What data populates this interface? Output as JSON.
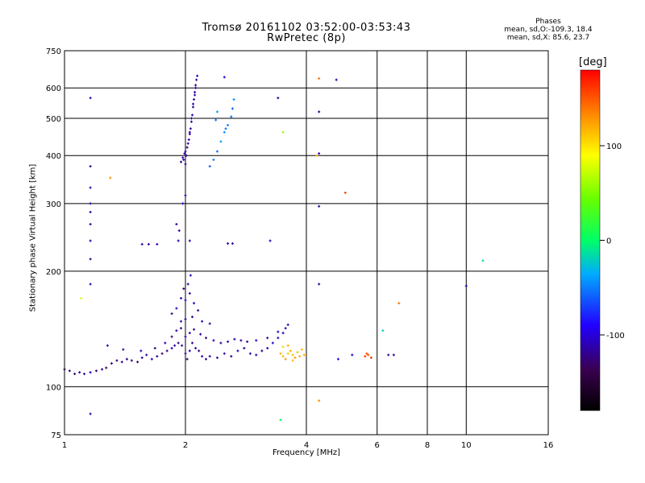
{
  "header": {
    "title": "Tromsø 20161102 03:52:00-03:53:43",
    "subtitle": "RwPretec (8p)",
    "stats_heading": "Phases",
    "stats_o": "mean, sd,O:-109.3, 18.4",
    "stats_x": "mean, sd,X:  85.6, 23.7"
  },
  "colorbar": {
    "unit_label": "[deg]",
    "range": [
      -180,
      180
    ],
    "ticks": [
      {
        "value": 100,
        "label": "100"
      },
      {
        "value": 0,
        "label": "0"
      },
      {
        "value": -100,
        "label": "-100"
      }
    ]
  },
  "chart_data": {
    "type": "scatter",
    "title": "Tromsø 20161102 03:52:00-03:53:43",
    "subtitle": "RwPretec (8p)",
    "xlabel": "Frequency [MHz]",
    "ylabel": "Stationary phase Virtual Height [km]",
    "x_scale": "log",
    "y_scale": "log",
    "xlim": [
      1,
      16
    ],
    "ylim": [
      75,
      750
    ],
    "x_ticks": [
      1,
      2,
      4,
      6,
      8,
      10,
      16
    ],
    "y_ticks": [
      75,
      100,
      200,
      300,
      400,
      500,
      600,
      750
    ],
    "grid": true,
    "color_by": "phase [deg]",
    "points": [
      [
        1.0,
        111,
        -120
      ],
      [
        1.03,
        110,
        -125
      ],
      [
        1.06,
        108,
        -130
      ],
      [
        1.09,
        109,
        -110
      ],
      [
        1.12,
        108,
        -120
      ],
      [
        1.16,
        109,
        -115
      ],
      [
        1.2,
        110,
        -125
      ],
      [
        1.24,
        111,
        -120
      ],
      [
        1.27,
        112,
        -135
      ],
      [
        1.31,
        115,
        -120
      ],
      [
        1.35,
        117,
        -130
      ],
      [
        1.39,
        116,
        -115
      ],
      [
        1.43,
        118,
        -125
      ],
      [
        1.47,
        117,
        -120
      ],
      [
        1.52,
        116,
        -130
      ],
      [
        1.56,
        119,
        -115
      ],
      [
        1.6,
        121,
        -125
      ],
      [
        1.65,
        118,
        -110
      ],
      [
        1.7,
        120,
        -120
      ],
      [
        1.75,
        122,
        -130
      ],
      [
        1.8,
        124,
        -125
      ],
      [
        1.85,
        126,
        -115
      ],
      [
        1.88,
        128,
        -110
      ],
      [
        1.92,
        130,
        -125
      ],
      [
        1.96,
        128,
        -120
      ],
      [
        2.0,
        122,
        -115
      ],
      [
        2.02,
        118,
        -125
      ],
      [
        2.05,
        124,
        -110
      ],
      [
        2.08,
        130,
        -120
      ],
      [
        2.12,
        126,
        -115
      ],
      [
        2.16,
        124,
        -125
      ],
      [
        2.2,
        120,
        -110
      ],
      [
        2.25,
        118,
        -120
      ],
      [
        2.3,
        120,
        -115
      ],
      [
        2.4,
        119,
        -120
      ],
      [
        2.5,
        122,
        -115
      ],
      [
        2.6,
        120,
        -125
      ],
      [
        2.7,
        124,
        -110
      ],
      [
        2.8,
        126,
        -120
      ],
      [
        2.9,
        122,
        -115
      ],
      [
        3.0,
        121,
        -110
      ],
      [
        3.1,
        124,
        -120
      ],
      [
        3.2,
        126,
        -115
      ],
      [
        3.3,
        130,
        -105
      ],
      [
        3.4,
        134,
        -110
      ],
      [
        3.5,
        138,
        -100
      ],
      [
        3.55,
        142,
        -110
      ],
      [
        3.6,
        145,
        -105
      ],
      [
        1.28,
        128,
        -115
      ],
      [
        1.4,
        125,
        -120
      ],
      [
        1.55,
        124,
        -110
      ],
      [
        1.68,
        126,
        -125
      ],
      [
        1.78,
        130,
        -115
      ],
      [
        1.85,
        135,
        -120
      ],
      [
        1.9,
        140,
        -110
      ],
      [
        1.95,
        142,
        -120
      ],
      [
        2.0,
        135,
        -115
      ],
      [
        2.05,
        138,
        -110
      ],
      [
        2.1,
        141,
        -120
      ],
      [
        2.18,
        137,
        -115
      ],
      [
        2.25,
        134,
        -125
      ],
      [
        2.35,
        132,
        -110
      ],
      [
        2.45,
        130,
        -120
      ],
      [
        2.55,
        131,
        -115
      ],
      [
        2.65,
        133,
        -110
      ],
      [
        2.75,
        132,
        -120
      ],
      [
        2.85,
        131,
        -115
      ],
      [
        3.0,
        132,
        -110
      ],
      [
        3.2,
        134,
        -120
      ],
      [
        3.4,
        139,
        -110
      ],
      [
        1.85,
        155,
        -120
      ],
      [
        1.9,
        160,
        -110
      ],
      [
        1.95,
        170,
        -115
      ],
      [
        2.0,
        168,
        -105
      ],
      [
        2.05,
        175,
        -115
      ],
      [
        2.1,
        165,
        -110
      ],
      [
        2.0,
        150,
        -120
      ],
      [
        2.03,
        185,
        -115
      ],
      [
        2.06,
        195,
        -110
      ],
      [
        1.98,
        180,
        -125
      ],
      [
        1.95,
        148,
        -112
      ],
      [
        2.08,
        152,
        -118
      ],
      [
        2.15,
        158,
        -122
      ],
      [
        2.2,
        148,
        -114
      ],
      [
        2.3,
        146,
        -120
      ],
      [
        1.92,
        240,
        -110
      ],
      [
        1.9,
        265,
        -115
      ],
      [
        1.93,
        255,
        -120
      ],
      [
        1.97,
        300,
        -105
      ],
      [
        2.0,
        315,
        -110
      ],
      [
        1.95,
        385,
        -120
      ],
      [
        1.97,
        395,
        -115
      ],
      [
        2.0,
        410,
        -110
      ],
      [
        2.02,
        420,
        -120
      ],
      [
        2.04,
        440,
        -115
      ],
      [
        2.05,
        455,
        -110
      ],
      [
        2.06,
        470,
        -120
      ],
      [
        2.07,
        490,
        -115
      ],
      [
        2.08,
        510,
        -110
      ],
      [
        2.09,
        535,
        -120
      ],
      [
        2.1,
        560,
        -115
      ],
      [
        2.11,
        585,
        -110
      ],
      [
        2.12,
        610,
        -120
      ],
      [
        2.13,
        630,
        -115
      ],
      [
        2.14,
        645,
        -110
      ],
      [
        2.0,
        380,
        -118
      ],
      [
        2.01,
        400,
        -112
      ],
      [
        2.03,
        430,
        -116
      ],
      [
        2.05,
        460,
        -114
      ],
      [
        2.07,
        500,
        -119
      ],
      [
        2.09,
        545,
        -113
      ],
      [
        2.11,
        575,
        -117
      ],
      [
        2.12,
        600,
        -111
      ],
      [
        1.98,
        390,
        -115
      ],
      [
        1.99,
        405,
        -121
      ],
      [
        2.3,
        375,
        -60
      ],
      [
        2.35,
        390,
        -50
      ],
      [
        2.4,
        410,
        -55
      ],
      [
        2.45,
        435,
        -40
      ],
      [
        2.5,
        460,
        -45
      ],
      [
        2.55,
        480,
        -50
      ],
      [
        2.6,
        505,
        -55
      ],
      [
        2.62,
        530,
        -60
      ],
      [
        2.64,
        560,
        -45
      ],
      [
        2.4,
        520,
        -40
      ],
      [
        2.38,
        495,
        -50
      ],
      [
        2.52,
        470,
        -55
      ],
      [
        3.45,
        122,
        120
      ],
      [
        3.5,
        120,
        115
      ],
      [
        3.55,
        118,
        125
      ],
      [
        3.6,
        122,
        110
      ],
      [
        3.65,
        124,
        120
      ],
      [
        3.7,
        121,
        115
      ],
      [
        3.75,
        119,
        125
      ],
      [
        3.8,
        123,
        110
      ],
      [
        3.85,
        120,
        120
      ],
      [
        3.9,
        125,
        115
      ],
      [
        3.5,
        127,
        105
      ],
      [
        3.6,
        128,
        118
      ],
      [
        3.7,
        117,
        112
      ],
      [
        3.95,
        121,
        122
      ],
      [
        5.6,
        120,
        160
      ],
      [
        5.7,
        121,
        155
      ],
      [
        5.8,
        119,
        165
      ],
      [
        5.65,
        122,
        150
      ],
      [
        1.16,
        565,
        -110
      ],
      [
        1.16,
        375,
        -120
      ],
      [
        1.16,
        330,
        -115
      ],
      [
        1.16,
        300,
        -110
      ],
      [
        1.16,
        285,
        -120
      ],
      [
        1.16,
        265,
        -115
      ],
      [
        1.16,
        240,
        -110
      ],
      [
        1.16,
        215,
        -120
      ],
      [
        1.16,
        185,
        -115
      ],
      [
        1.16,
        85,
        -110
      ],
      [
        1.56,
        235,
        -115
      ],
      [
        1.62,
        235,
        -120
      ],
      [
        1.7,
        235,
        -110
      ],
      [
        2.05,
        240,
        -115
      ],
      [
        2.55,
        236,
        -120
      ],
      [
        2.62,
        236,
        -115
      ],
      [
        3.25,
        240,
        -110
      ],
      [
        3.4,
        565,
        -120
      ],
      [
        3.5,
        460,
        60
      ],
      [
        3.45,
        82,
        0
      ],
      [
        4.3,
        635,
        140
      ],
      [
        4.3,
        520,
        -120
      ],
      [
        4.3,
        405,
        -110
      ],
      [
        4.3,
        295,
        -115
      ],
      [
        4.3,
        185,
        -120
      ],
      [
        4.3,
        92,
        130
      ],
      [
        4.25,
        400,
        120
      ],
      [
        5.0,
        320,
        160
      ],
      [
        4.75,
        630,
        -110
      ],
      [
        4.8,
        118,
        -100
      ],
      [
        5.2,
        121,
        -110
      ],
      [
        6.4,
        121,
        -115
      ],
      [
        6.6,
        121,
        -120
      ],
      [
        6.8,
        165,
        140
      ],
      [
        6.2,
        140,
        -20
      ],
      [
        10.0,
        183,
        -115
      ],
      [
        11.0,
        213,
        -10
      ],
      [
        2.5,
        640,
        -100
      ],
      [
        1.1,
        170,
        80
      ],
      [
        1.3,
        350,
        130
      ]
    ]
  }
}
